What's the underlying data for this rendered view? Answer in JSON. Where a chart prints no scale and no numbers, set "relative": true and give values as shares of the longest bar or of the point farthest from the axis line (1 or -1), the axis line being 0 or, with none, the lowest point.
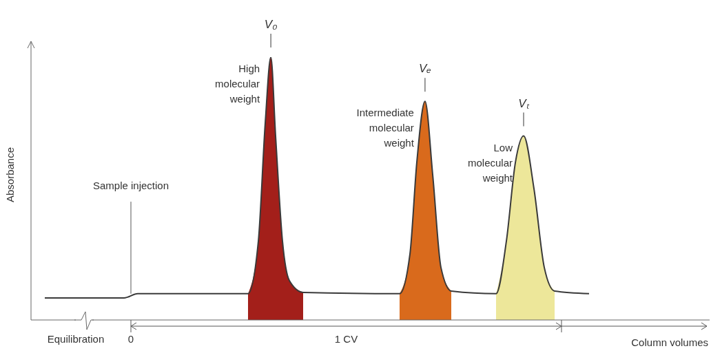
{
  "chart_data": {
    "type": "line",
    "relative": true,
    "xlabel": "Column volumes",
    "ylabel": "Absorbance",
    "xlim": [
      -0.232,
      1.344
    ],
    "xticks": [
      {
        "value": -0.128,
        "label": "Equilibration"
      },
      0,
      {
        "value": 0.5,
        "label": "1 CV"
      }
    ],
    "series": [
      {
        "color": "#3a3a3a",
        "x": [
          -0.2,
          -0.016,
          0.016,
          0.272,
          0.296,
          0.312,
          0.325,
          0.336,
          0.352,
          0.368,
          0.4,
          0.624,
          0.648,
          0.664,
          0.683,
          0.701,
          0.72,
          0.744,
          0.848,
          0.872,
          0.893,
          0.912,
          0.936,
          0.96,
          0.984,
          1.064
        ],
        "values": [
          0.084,
          0.084,
          0.1,
          0.1,
          0.3,
          0.75,
          1,
          0.7,
          0.3,
          0.15,
          0.105,
          0.1,
          0.25,
          0.6,
          0.832,
          0.55,
          0.2,
          0.11,
          0.1,
          0.3,
          0.6,
          0.7,
          0.5,
          0.2,
          0.11,
          0.1
        ]
      },
      {
        "type": "area",
        "color": "#a31f1a",
        "x": [
          0.272,
          0.296,
          0.312,
          0.325,
          0.336,
          0.352,
          0.368,
          0.4
        ],
        "values": [
          0.1,
          0.3,
          0.75,
          1,
          0.7,
          0.3,
          0.15,
          0.105
        ]
      },
      {
        "type": "area",
        "color": "#d96a1c",
        "x": [
          0.624,
          0.648,
          0.664,
          0.683,
          0.701,
          0.72,
          0.744
        ],
        "values": [
          0.1,
          0.25,
          0.6,
          0.832,
          0.55,
          0.2,
          0.11
        ]
      },
      {
        "type": "area",
        "color": "#ede79a",
        "x": [
          0.848,
          0.872,
          0.893,
          0.912,
          0.936,
          0.96,
          0.984
        ],
        "values": [
          0.1,
          0.3,
          0.6,
          0.7,
          0.5,
          0.2,
          0.11
        ]
      }
    ],
    "ref_lines": [
      {
        "axis": "x",
        "value": 0,
        "label": "Sample injection"
      }
    ],
    "annotations": [
      {
        "text": "V₀",
        "x": 0.325,
        "y": 1
      },
      {
        "text": "High molecular weight",
        "x": 0.325,
        "y": 1
      },
      {
        "text": "Vₑ",
        "x": 0.683,
        "y": 0.832
      },
      {
        "text": "Intermediate molecular weight",
        "x": 0.683,
        "y": 0.832
      },
      {
        "text": "Vₜ",
        "x": 0.912,
        "y": 0.7
      },
      {
        "text": "Low molecular weight",
        "x": 0.912,
        "y": 0.7
      }
    ]
  }
}
